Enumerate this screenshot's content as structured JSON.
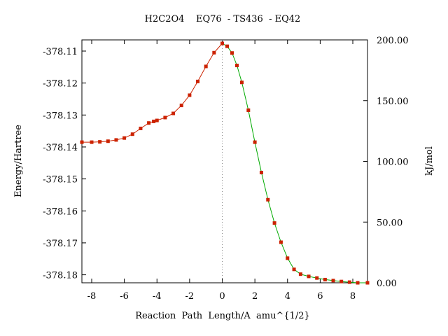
{
  "chart_data": {
    "type": "line",
    "title": "H2C2O4    EQ76  - TS436  - EQ42",
    "xlabel": "Reaction  Path  Length/A  amu^{1/2}",
    "ylabel_left": "Energy/Hartree",
    "ylabel_right": "kJ/mol",
    "xlim": [
      -8.6,
      8.9
    ],
    "ylim_left": [
      -378.1825,
      -378.1065
    ],
    "ylim_right": [
      0.0,
      200.0
    ],
    "x_ticks": [
      -8,
      -6,
      -4,
      -2,
      0,
      2,
      4,
      6,
      8
    ],
    "y_left_ticks": [
      -378.11,
      -378.12,
      -378.13,
      -378.14,
      -378.15,
      -378.16,
      -378.17,
      -378.18
    ],
    "y_right_ticks": [
      "200.00",
      "150.00",
      "100.00",
      "50.00",
      "0.00"
    ],
    "ts_marker_x": 0,
    "colors": {
      "markers": "#cc2200",
      "curve_left": "#cc2200",
      "curve_right": "#00aa00",
      "ts_line": "#888888"
    },
    "series": [
      {
        "side": "left",
        "x": [
          -8.6,
          -8.0,
          -7.5,
          -7.0,
          -6.5,
          -6.0,
          -5.5,
          -5.0,
          -4.5,
          -4.2,
          -4.0,
          -3.5,
          -3.0,
          -2.5,
          -2.0,
          -1.5,
          -1.0,
          -0.5,
          0.0
        ],
        "y": [
          -378.1385,
          -378.1385,
          -378.1384,
          -378.1382,
          -378.1378,
          -378.1372,
          -378.136,
          -378.1342,
          -378.1325,
          -378.132,
          -378.1317,
          -378.1308,
          -378.1295,
          -378.127,
          -378.1238,
          -378.1195,
          -378.1148,
          -378.1105,
          -378.1076
        ]
      },
      {
        "side": "right",
        "x": [
          0.0,
          0.3,
          0.6,
          0.9,
          1.2,
          1.6,
          2.0,
          2.4,
          2.8,
          3.2,
          3.6,
          4.0,
          4.4,
          4.8,
          5.3,
          5.8,
          6.3,
          6.8,
          7.3,
          7.8,
          8.3,
          8.9
        ],
        "y": [
          -378.1076,
          -378.1085,
          -378.1106,
          -378.1145,
          -378.1198,
          -378.1285,
          -378.1385,
          -378.148,
          -378.1565,
          -378.1638,
          -378.1698,
          -378.1748,
          -378.1783,
          -378.1798,
          -378.1805,
          -378.181,
          -378.1815,
          -378.1818,
          -378.1821,
          -378.1823,
          -378.1825,
          -378.1825
        ]
      }
    ]
  }
}
